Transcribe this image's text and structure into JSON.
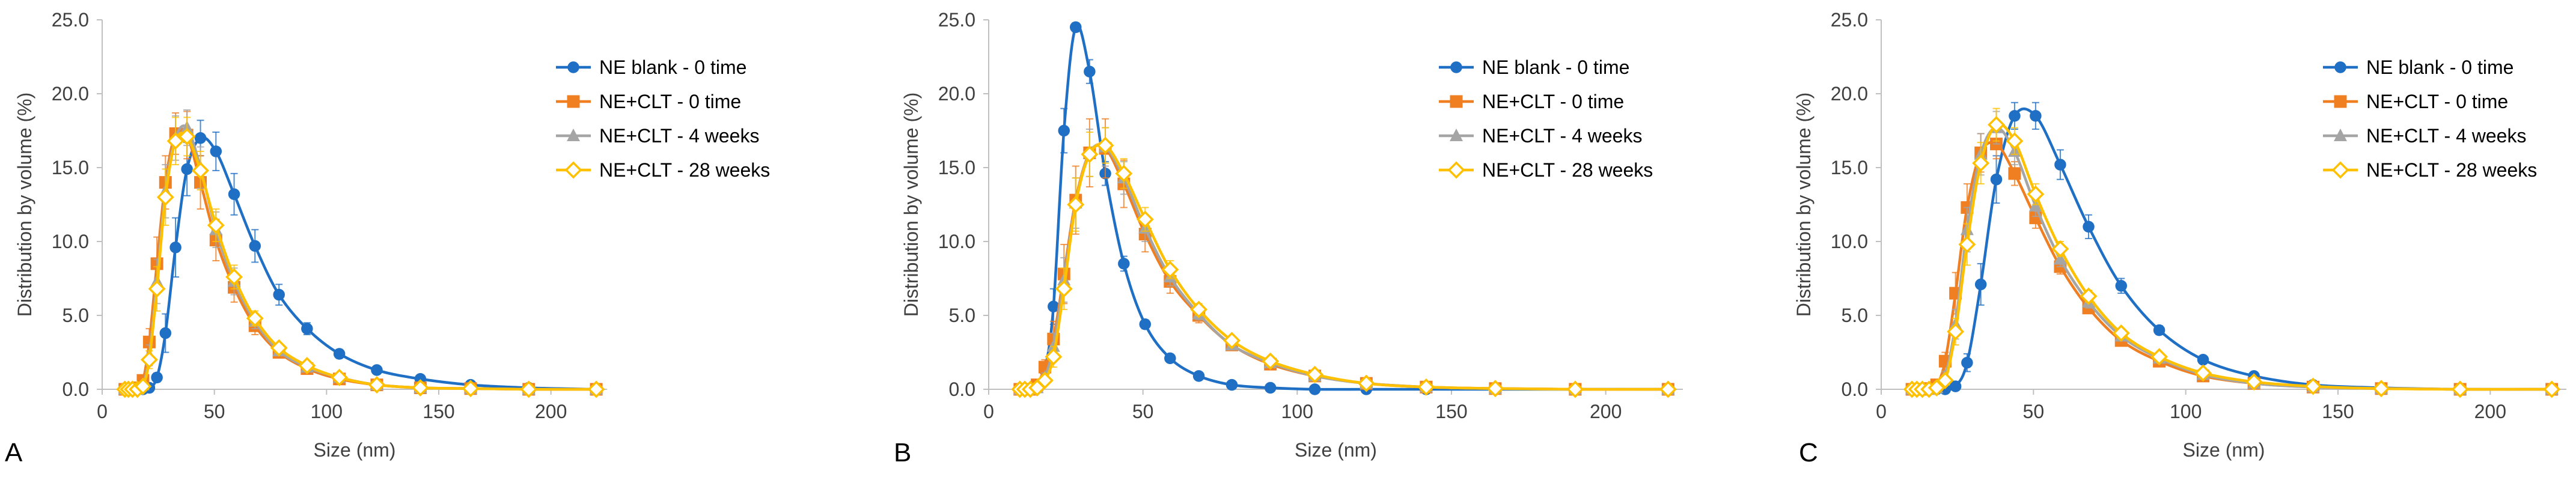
{
  "chart_data": [
    {
      "panel_label": "A",
      "type": "line",
      "title": "",
      "xlabel": "Size (nm)",
      "ylabel": "Distribution by volume (%)",
      "xlim": [
        0,
        225
      ],
      "ylim": [
        0,
        25
      ],
      "xticks": [
        0,
        50,
        100,
        150,
        200
      ],
      "xtick_labels": [
        "0",
        "50",
        "100",
        "150",
        "200"
      ],
      "yticks": [
        0,
        5,
        10,
        15,
        20,
        25
      ],
      "ytick_labels": [
        "0.0",
        "5.0",
        "10.0",
        "15.0",
        "20.0",
        "25.0"
      ],
      "grid": false,
      "legend_position": "top-right",
      "x": [
        10.1,
        11.7,
        13.5,
        15.7,
        18.2,
        21.0,
        24.4,
        28.2,
        32.7,
        37.8,
        43.8,
        50.7,
        58.8,
        68.1,
        78.8,
        91.3,
        105.7,
        122.4,
        141.8,
        164.2,
        190.1,
        220.2
      ],
      "series": [
        {
          "name": "NE blank - 0 time",
          "color": "#1f6fc5",
          "marker": "circle",
          "values": [
            0,
            0,
            0,
            0,
            0,
            0.1,
            0.8,
            3.8,
            9.6,
            14.9,
            17.0,
            16.1,
            13.2,
            9.7,
            6.4,
            4.1,
            2.4,
            1.3,
            0.7,
            0.3,
            0.1,
            0
          ],
          "errors": [
            0,
            0,
            0,
            0,
            0,
            0,
            0.3,
            1.3,
            2.0,
            1.8,
            1.2,
            1.3,
            1.4,
            1.1,
            0.7,
            0.4,
            0.3,
            0.2,
            0.1,
            0.1,
            0,
            0
          ]
        },
        {
          "name": "NE+CLT - 0 time",
          "color": "#f07f22",
          "marker": "square",
          "values": [
            0,
            0,
            0,
            0.1,
            0.6,
            3.2,
            8.5,
            14.0,
            17.3,
            17.2,
            14.0,
            10.1,
            6.9,
            4.3,
            2.5,
            1.4,
            0.7,
            0.3,
            0.1,
            0.05,
            0,
            0
          ],
          "errors": [
            0,
            0,
            0,
            0,
            0.2,
            0.9,
            1.8,
            1.8,
            1.4,
            1.6,
            1.8,
            1.4,
            1.0,
            0.6,
            0.3,
            0.2,
            0.1,
            0.05,
            0,
            0,
            0,
            0
          ]
        },
        {
          "name": "NE+CLT - 4 weeks",
          "color": "#a5a5a5",
          "marker": "triangle",
          "values": [
            0,
            0,
            0,
            0,
            0.3,
            2.3,
            7.3,
            13.4,
            17.0,
            17.7,
            15.0,
            10.8,
            7.3,
            4.6,
            2.6,
            1.5,
            0.8,
            0.3,
            0.1,
            0.05,
            0,
            0
          ],
          "errors": [
            0,
            0,
            0,
            0,
            0.1,
            0.7,
            1.5,
            1.8,
            1.5,
            1.2,
            1.4,
            1.2,
            0.9,
            0.5,
            0.3,
            0.2,
            0.1,
            0.05,
            0,
            0,
            0,
            0
          ]
        },
        {
          "name": "NE+CLT - 28 weeks",
          "color": "#ffc000",
          "marker": "diamond",
          "values": [
            0,
            0,
            0,
            0,
            0.2,
            2.0,
            6.8,
            13.0,
            16.8,
            17.1,
            14.8,
            11.1,
            7.6,
            4.8,
            2.8,
            1.6,
            0.8,
            0.3,
            0.1,
            0.05,
            0,
            0
          ],
          "errors": [
            0,
            0,
            0,
            0,
            0.1,
            0.6,
            1.5,
            1.9,
            1.6,
            1.3,
            1.3,
            1.1,
            0.8,
            0.5,
            0.3,
            0.2,
            0.1,
            0.05,
            0,
            0,
            0,
            0
          ]
        }
      ]
    },
    {
      "panel_label": "B",
      "type": "line",
      "title": "",
      "xlabel": "Size (nm)",
      "ylabel": "Distribution by volume (%)",
      "xlim": [
        0,
        225
      ],
      "ylim": [
        0,
        25
      ],
      "xticks": [
        0,
        50,
        100,
        150,
        200
      ],
      "xtick_labels": [
        "0",
        "50",
        "100",
        "150",
        "200"
      ],
      "yticks": [
        0,
        5,
        10,
        15,
        20,
        25
      ],
      "ytick_labels": [
        "0.0",
        "5.0",
        "10.0",
        "15.0",
        "20.0",
        "25.0"
      ],
      "grid": false,
      "legend_position": "top-right",
      "x": [
        10.1,
        11.7,
        13.5,
        15.7,
        18.2,
        21.0,
        24.4,
        28.2,
        32.7,
        37.8,
        43.8,
        50.7,
        58.8,
        68.1,
        78.8,
        91.3,
        105.7,
        122.4,
        141.8,
        164.2,
        190.1,
        220.2
      ],
      "series": [
        {
          "name": "NE blank - 0 time",
          "color": "#1f6fc5",
          "marker": "circle",
          "values": [
            0,
            0,
            0,
            0.1,
            1.3,
            5.6,
            17.5,
            24.5,
            21.5,
            14.6,
            8.5,
            4.4,
            2.1,
            0.9,
            0.3,
            0.1,
            0,
            0,
            0,
            0,
            0,
            0
          ],
          "errors": [
            0,
            0,
            0,
            0.05,
            0.5,
            1.2,
            1.5,
            0.3,
            0.8,
            0.8,
            0.5,
            0.3,
            0.2,
            0.1,
            0.05,
            0,
            0,
            0,
            0,
            0,
            0,
            0
          ]
        },
        {
          "name": "NE+CLT - 0 time",
          "color": "#f07f22",
          "marker": "square",
          "values": [
            0,
            0,
            0,
            0.3,
            1.5,
            3.4,
            7.8,
            12.8,
            16.0,
            16.3,
            13.9,
            10.5,
            7.3,
            5.0,
            3.0,
            1.7,
            0.9,
            0.4,
            0.15,
            0.05,
            0,
            0
          ],
          "errors": [
            0,
            0,
            0,
            0.1,
            0.5,
            1.2,
            2.0,
            2.3,
            2.3,
            2.0,
            1.6,
            1.2,
            0.8,
            0.5,
            0.3,
            0.2,
            0.1,
            0.05,
            0,
            0,
            0,
            0
          ]
        },
        {
          "name": "NE+CLT - 4 weeks",
          "color": "#a5a5a5",
          "marker": "triangle",
          "values": [
            0,
            0,
            0,
            0.1,
            0.8,
            2.9,
            7.4,
            12.6,
            16.0,
            16.4,
            14.3,
            10.9,
            7.6,
            5.1,
            3.0,
            1.8,
            0.9,
            0.4,
            0.15,
            0.05,
            0,
            0
          ],
          "errors": [
            0,
            0,
            0,
            0.05,
            0.3,
            0.9,
            1.5,
            1.7,
            1.6,
            1.3,
            1.1,
            0.9,
            0.6,
            0.4,
            0.2,
            0.1,
            0.1,
            0.05,
            0,
            0,
            0,
            0
          ]
        },
        {
          "name": "NE+CLT - 28 weeks",
          "color": "#ffc000",
          "marker": "diamond",
          "values": [
            0,
            0,
            0,
            0.1,
            0.6,
            2.2,
            6.8,
            12.5,
            15.9,
            16.5,
            14.6,
            11.5,
            8.1,
            5.4,
            3.3,
            1.9,
            1.0,
            0.4,
            0.15,
            0.05,
            0,
            0
          ],
          "errors": [
            0,
            0,
            0,
            0.05,
            0.2,
            0.7,
            1.4,
            1.8,
            1.5,
            1.2,
            1.0,
            0.8,
            0.6,
            0.4,
            0.2,
            0.1,
            0.1,
            0.05,
            0,
            0,
            0,
            0
          ]
        }
      ]
    },
    {
      "panel_label": "C",
      "type": "line",
      "title": "",
      "xlabel": "Size (nm)",
      "ylabel": "Distribution by volume (%)",
      "xlim": [
        0,
        225
      ],
      "ylim": [
        0,
        25
      ],
      "xticks": [
        0,
        50,
        100,
        150,
        200
      ],
      "xtick_labels": [
        "0",
        "50",
        "100",
        "150",
        "200"
      ],
      "yticks": [
        0,
        5,
        10,
        15,
        20,
        25
      ],
      "ytick_labels": [
        "0.0",
        "5.0",
        "10.0",
        "15.0",
        "20.0",
        "25.0"
      ],
      "grid": false,
      "legend_position": "top-right",
      "x": [
        10.1,
        11.7,
        13.5,
        15.7,
        18.2,
        21.0,
        24.4,
        28.2,
        32.7,
        37.8,
        43.8,
        50.7,
        58.8,
        68.1,
        78.8,
        91.3,
        105.7,
        122.4,
        141.8,
        164.2,
        190.1,
        220.2
      ],
      "series": [
        {
          "name": "NE blank - 0 time",
          "color": "#1f6fc5",
          "marker": "circle",
          "values": [
            0,
            0,
            0,
            0,
            0,
            0,
            0.2,
            1.8,
            7.1,
            14.2,
            18.5,
            18.5,
            15.2,
            11.0,
            7.0,
            4.0,
            2.0,
            0.9,
            0.3,
            0.1,
            0,
            0
          ],
          "errors": [
            0,
            0,
            0,
            0,
            0,
            0,
            0.1,
            0.6,
            1.4,
            1.6,
            0.9,
            0.9,
            1.0,
            0.8,
            0.5,
            0.3,
            0.2,
            0.1,
            0.05,
            0,
            0,
            0
          ]
        },
        {
          "name": "NE+CLT - 0 time",
          "color": "#f07f22",
          "marker": "square",
          "values": [
            0,
            0,
            0,
            0.05,
            0.3,
            1.9,
            6.5,
            12.3,
            16.0,
            16.6,
            14.6,
            11.6,
            8.3,
            5.5,
            3.3,
            1.9,
            0.9,
            0.4,
            0.15,
            0.05,
            0,
            0
          ],
          "errors": [
            0,
            0,
            0,
            0,
            0.1,
            0.6,
            1.4,
            1.6,
            1.3,
            1.0,
            0.8,
            0.7,
            0.5,
            0.3,
            0.2,
            0.1,
            0.05,
            0,
            0,
            0,
            0,
            0
          ]
        },
        {
          "name": "NE+CLT - 4 weeks",
          "color": "#a5a5a5",
          "marker": "triangle",
          "values": [
            0,
            0,
            0,
            0,
            0.1,
            0.9,
            4.4,
            10.8,
            15.9,
            17.7,
            16.1,
            12.4,
            8.8,
            5.9,
            3.6,
            2.1,
            1.0,
            0.4,
            0.15,
            0.05,
            0,
            0
          ],
          "errors": [
            0,
            0,
            0,
            0,
            0.05,
            0.3,
            1.0,
            1.5,
            1.4,
            1.1,
            0.9,
            0.7,
            0.5,
            0.4,
            0.2,
            0.1,
            0.05,
            0,
            0,
            0,
            0,
            0
          ]
        },
        {
          "name": "NE+CLT - 28 weeks",
          "color": "#ffc000",
          "marker": "diamond",
          "values": [
            0,
            0,
            0,
            0,
            0.1,
            0.6,
            3.9,
            9.8,
            15.3,
            17.9,
            16.8,
            13.2,
            9.5,
            6.3,
            3.8,
            2.2,
            1.1,
            0.5,
            0.2,
            0.05,
            0,
            0
          ],
          "errors": [
            0,
            0,
            0,
            0,
            0.05,
            0.2,
            0.9,
            1.4,
            1.4,
            1.1,
            0.9,
            0.7,
            0.5,
            0.4,
            0.2,
            0.1,
            0.05,
            0,
            0,
            0,
            0,
            0
          ]
        }
      ]
    }
  ]
}
